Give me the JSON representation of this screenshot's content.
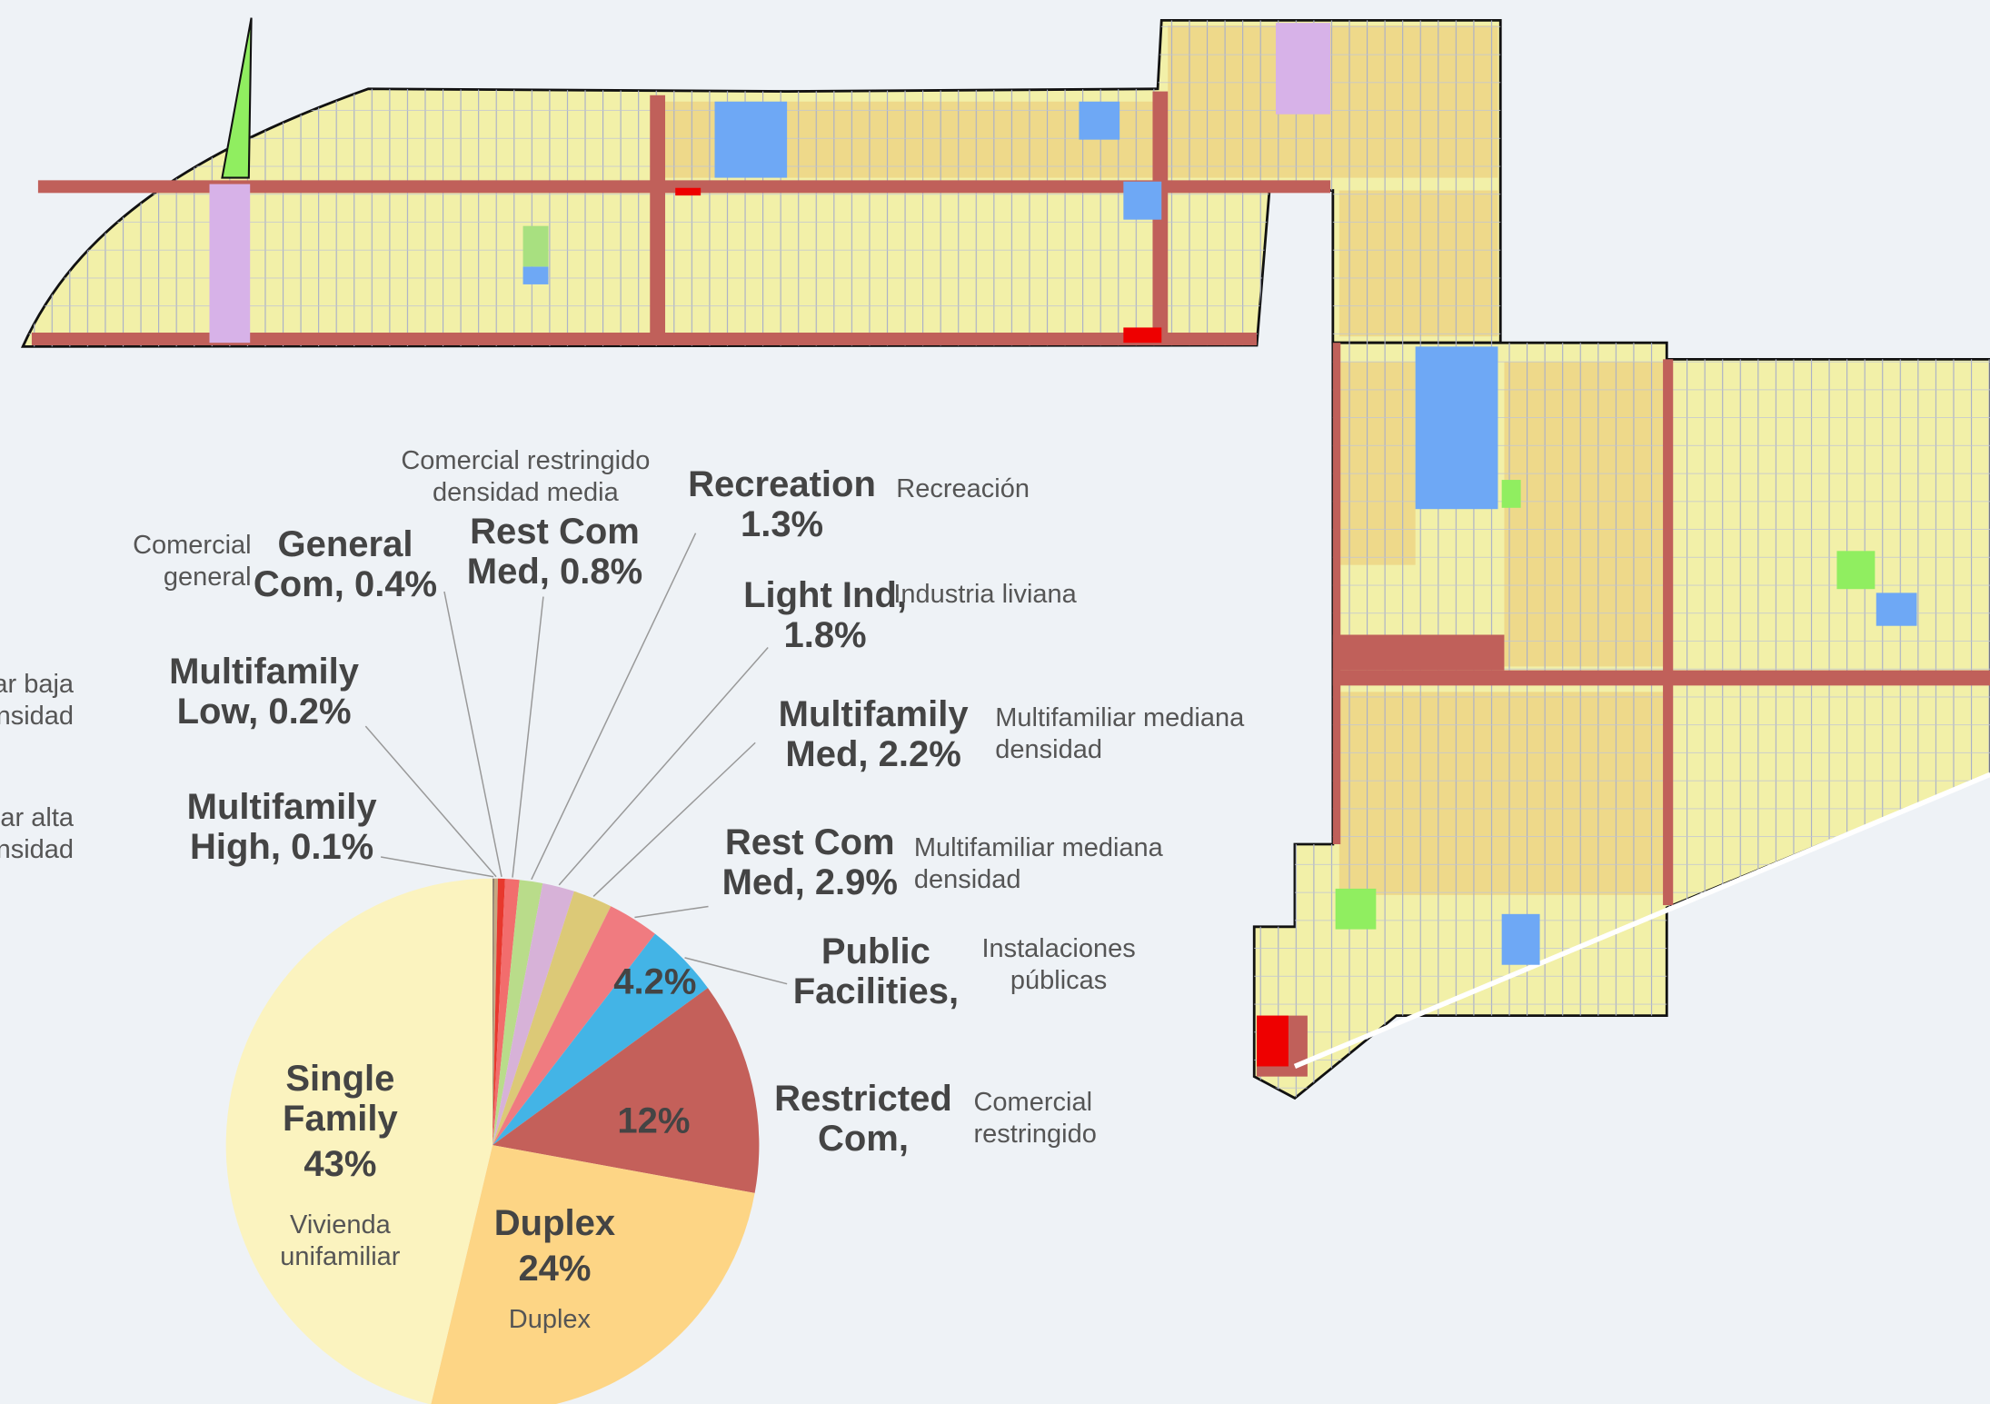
{
  "chart_data": {
    "type": "pie",
    "categories": [
      "Multifamily High,",
      "Multifamily Low,",
      "General Com,",
      "Rest Com Med,",
      "Recreation",
      "Light Ind,",
      "Multifamily Med,",
      "Rest Com Med,",
      "Public Facilities,",
      "Restricted Com,",
      "Duplex",
      "Single Family"
    ],
    "values": [
      0.1,
      0.2,
      0.4,
      0.8,
      1.3,
      1.8,
      2.2,
      2.9,
      4.2,
      12,
      24,
      43
    ],
    "value_labels": [
      "0.1%",
      "0.2%",
      "0.4%",
      "0.8%",
      "1.3%",
      "1.8%",
      "2.2%",
      "2.9%",
      "4.2%",
      "12%",
      "24%",
      "43%"
    ],
    "descriptions": [
      "Multifamiliar alta densidad",
      "Multifamiliar baja densidad",
      "Comercial general",
      "Comercial restringido densidad media",
      "Recreación",
      "Industria liviana",
      "Multifamiliar mediana densidad",
      "Multifamiliar mediana densidad",
      "Instalaciones públicas",
      "Comercial restringido",
      "Duplex",
      "Vivienda unifamiliar"
    ],
    "colors": [
      "#8b7b6b",
      "#c4a882",
      "#e8382d",
      "#f26d6d",
      "#b9dc8a",
      "#d7b2d8",
      "#dcc977",
      "#f07b80",
      "#43b4e6",
      "#c4605a",
      "#fdd585",
      "#fbf3bf"
    ]
  }
}
